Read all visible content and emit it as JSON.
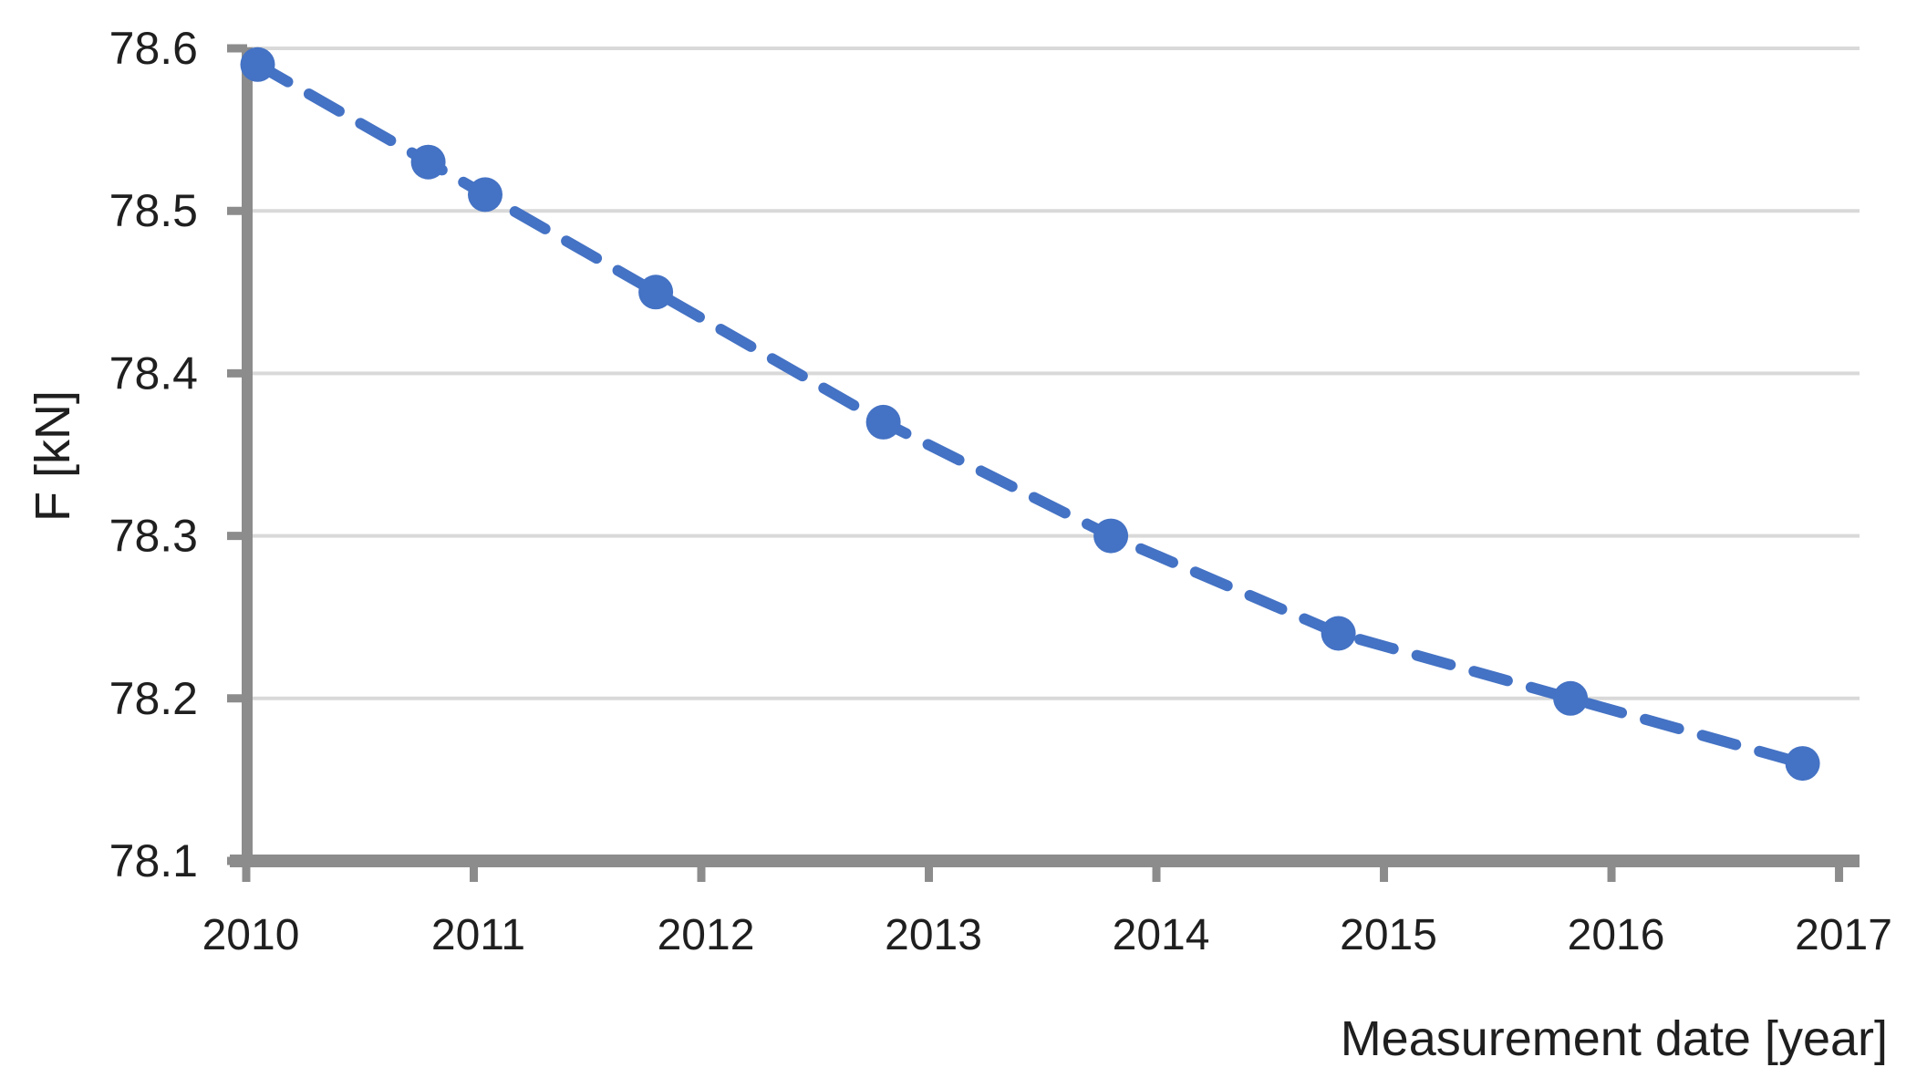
{
  "chart_data": {
    "type": "line",
    "title": "",
    "xlabel": "Measurement date [year]",
    "ylabel": "F [kN]",
    "xlim": [
      2010,
      2017.09
    ],
    "ylim": [
      78.1,
      78.6
    ],
    "xticks": [
      2010,
      2011,
      2012,
      2013,
      2014,
      2015,
      2016,
      2017
    ],
    "xtick_labels": [
      "2010",
      "2011",
      "2012",
      "2013",
      "2014",
      "2015",
      "2016",
      "2017"
    ],
    "ytick_values": [
      78.1,
      78.2,
      78.3,
      78.4,
      78.5,
      78.6
    ],
    "ytick_labels": [
      "78.1",
      "78.2",
      "78.3",
      "78.4",
      "78.5",
      "78.6"
    ],
    "grid": "horizontal",
    "legend": "none",
    "series": [
      {
        "name": "F",
        "line_style": "dashed",
        "marker": "circle",
        "points": [
          [
            2010.05,
            78.59
          ],
          [
            2010.8,
            78.53
          ],
          [
            2011.05,
            78.51
          ],
          [
            2011.8,
            78.45
          ],
          [
            2012.8,
            78.37
          ],
          [
            2013.8,
            78.3
          ],
          [
            2014.8,
            78.24
          ],
          [
            2015.82,
            78.2
          ],
          [
            2016.84,
            78.16
          ]
        ]
      }
    ],
    "colors": {
      "series": "#4472C4",
      "gridline": "#D9D9D9",
      "axis": "#8C8C8C",
      "tick": "#8C8C8C",
      "text": "#1f1f1f",
      "background": "#ffffff"
    }
  }
}
